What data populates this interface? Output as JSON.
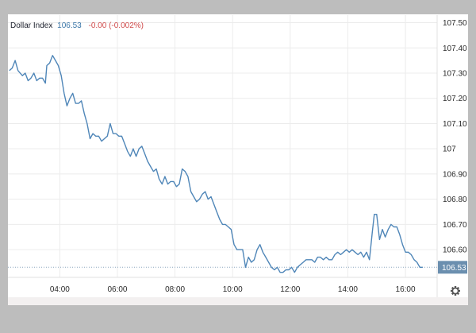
{
  "legend": {
    "name": "Dollar Index",
    "price": "106.53",
    "change": "-0.00 (-0.002%)"
  },
  "settings_icon": "gear-icon",
  "colors": {
    "line": "#4f86b8",
    "grid": "#ececec",
    "price_tag": "#6b8faf",
    "change_negative": "#d04a4a"
  },
  "chart_data": {
    "type": "line",
    "title": "",
    "xlabel": "",
    "ylabel": "",
    "x_tick_labels": [
      "04:00",
      "06:00",
      "08:00",
      "10:00",
      "12:00",
      "14:00",
      "16:00"
    ],
    "x_tick_hours": [
      4,
      6,
      8,
      10,
      12,
      14,
      16
    ],
    "y_tick_labels": [
      "107.50",
      "107.40",
      "107.30",
      "107.20",
      "107.10",
      "107",
      "106.90",
      "106.80",
      "106.70",
      "106.60"
    ],
    "y_tick_values": [
      107.5,
      107.4,
      107.3,
      107.2,
      107.1,
      107.0,
      106.9,
      106.8,
      106.7,
      106.6
    ],
    "xlim_hours": [
      2.2,
      17.1
    ],
    "ylim": [
      106.49,
      107.53
    ],
    "last_value": 106.53,
    "last_value_label": "106.53",
    "grid": true,
    "series": [
      {
        "values": [
          [
            2.25,
            107.31
          ],
          [
            2.35,
            107.32
          ],
          [
            2.45,
            107.35
          ],
          [
            2.55,
            107.31
          ],
          [
            2.7,
            107.29
          ],
          [
            2.8,
            107.3
          ],
          [
            2.9,
            107.27
          ],
          [
            3.0,
            107.28
          ],
          [
            3.1,
            107.3
          ],
          [
            3.2,
            107.27
          ],
          [
            3.3,
            107.28
          ],
          [
            3.4,
            107.28
          ],
          [
            3.5,
            107.26
          ],
          [
            3.55,
            107.33
          ],
          [
            3.65,
            107.34
          ],
          [
            3.75,
            107.37
          ],
          [
            3.85,
            107.35
          ],
          [
            3.95,
            107.33
          ],
          [
            4.05,
            107.29
          ],
          [
            4.15,
            107.22
          ],
          [
            4.25,
            107.17
          ],
          [
            4.35,
            107.2
          ],
          [
            4.45,
            107.22
          ],
          [
            4.55,
            107.18
          ],
          [
            4.65,
            107.18
          ],
          [
            4.75,
            107.19
          ],
          [
            4.85,
            107.14
          ],
          [
            4.95,
            107.1
          ],
          [
            5.05,
            107.04
          ],
          [
            5.15,
            107.06
          ],
          [
            5.25,
            107.05
          ],
          [
            5.35,
            107.05
          ],
          [
            5.45,
            107.03
          ],
          [
            5.55,
            107.04
          ],
          [
            5.65,
            107.05
          ],
          [
            5.75,
            107.1
          ],
          [
            5.85,
            107.06
          ],
          [
            5.95,
            107.06
          ],
          [
            6.05,
            107.05
          ],
          [
            6.15,
            107.05
          ],
          [
            6.25,
            107.02
          ],
          [
            6.35,
            106.99
          ],
          [
            6.45,
            106.97
          ],
          [
            6.55,
            107.0
          ],
          [
            6.65,
            106.97
          ],
          [
            6.75,
            107.0
          ],
          [
            6.85,
            107.01
          ],
          [
            6.95,
            106.98
          ],
          [
            7.05,
            106.95
          ],
          [
            7.15,
            106.93
          ],
          [
            7.25,
            106.91
          ],
          [
            7.35,
            106.92
          ],
          [
            7.45,
            106.88
          ],
          [
            7.55,
            106.86
          ],
          [
            7.65,
            106.89
          ],
          [
            7.75,
            106.86
          ],
          [
            7.85,
            106.87
          ],
          [
            7.95,
            106.87
          ],
          [
            8.05,
            106.85
          ],
          [
            8.15,
            106.86
          ],
          [
            8.25,
            106.92
          ],
          [
            8.35,
            106.91
          ],
          [
            8.45,
            106.89
          ],
          [
            8.55,
            106.83
          ],
          [
            8.65,
            106.81
          ],
          [
            8.75,
            106.79
          ],
          [
            8.85,
            106.8
          ],
          [
            8.95,
            106.82
          ],
          [
            9.05,
            106.83
          ],
          [
            9.15,
            106.8
          ],
          [
            9.25,
            106.81
          ],
          [
            9.35,
            106.78
          ],
          [
            9.45,
            106.75
          ],
          [
            9.55,
            106.72
          ],
          [
            9.65,
            106.7
          ],
          [
            9.75,
            106.7
          ],
          [
            9.85,
            106.69
          ],
          [
            9.95,
            106.68
          ],
          [
            10.05,
            106.62
          ],
          [
            10.15,
            106.6
          ],
          [
            10.25,
            106.6
          ],
          [
            10.35,
            106.6
          ],
          [
            10.45,
            106.53
          ],
          [
            10.55,
            106.57
          ],
          [
            10.65,
            106.55
          ],
          [
            10.75,
            106.56
          ],
          [
            10.85,
            106.6
          ],
          [
            10.95,
            106.62
          ],
          [
            11.05,
            106.59
          ],
          [
            11.15,
            106.57
          ],
          [
            11.25,
            106.55
          ],
          [
            11.35,
            106.53
          ],
          [
            11.45,
            106.52
          ],
          [
            11.55,
            106.53
          ],
          [
            11.65,
            106.51
          ],
          [
            11.75,
            106.51
          ],
          [
            11.85,
            106.52
          ],
          [
            11.95,
            106.52
          ],
          [
            12.05,
            106.53
          ],
          [
            12.15,
            106.51
          ],
          [
            12.25,
            106.53
          ],
          [
            12.35,
            106.54
          ],
          [
            12.45,
            106.55
          ],
          [
            12.55,
            106.56
          ],
          [
            12.65,
            106.56
          ],
          [
            12.75,
            106.56
          ],
          [
            12.85,
            106.55
          ],
          [
            12.95,
            106.57
          ],
          [
            13.05,
            106.57
          ],
          [
            13.15,
            106.56
          ],
          [
            13.25,
            106.57
          ],
          [
            13.35,
            106.56
          ],
          [
            13.45,
            106.56
          ],
          [
            13.55,
            106.58
          ],
          [
            13.65,
            106.59
          ],
          [
            13.75,
            106.58
          ],
          [
            13.85,
            106.59
          ],
          [
            13.95,
            106.6
          ],
          [
            14.05,
            106.59
          ],
          [
            14.15,
            106.6
          ],
          [
            14.25,
            106.59
          ],
          [
            14.35,
            106.58
          ],
          [
            14.45,
            106.59
          ],
          [
            14.55,
            106.57
          ],
          [
            14.65,
            106.59
          ],
          [
            14.75,
            106.56
          ],
          [
            14.85,
            106.67
          ],
          [
            14.92,
            106.74
          ],
          [
            15.0,
            106.74
          ],
          [
            15.1,
            106.64
          ],
          [
            15.2,
            106.68
          ],
          [
            15.3,
            106.65
          ],
          [
            15.4,
            106.68
          ],
          [
            15.5,
            106.7
          ],
          [
            15.6,
            106.69
          ],
          [
            15.7,
            106.69
          ],
          [
            15.8,
            106.66
          ],
          [
            15.9,
            106.62
          ],
          [
            16.0,
            106.59
          ],
          [
            16.1,
            106.59
          ],
          [
            16.2,
            106.58
          ],
          [
            16.3,
            106.56
          ],
          [
            16.4,
            106.55
          ],
          [
            16.5,
            106.53
          ],
          [
            16.6,
            106.53
          ]
        ]
      }
    ]
  }
}
